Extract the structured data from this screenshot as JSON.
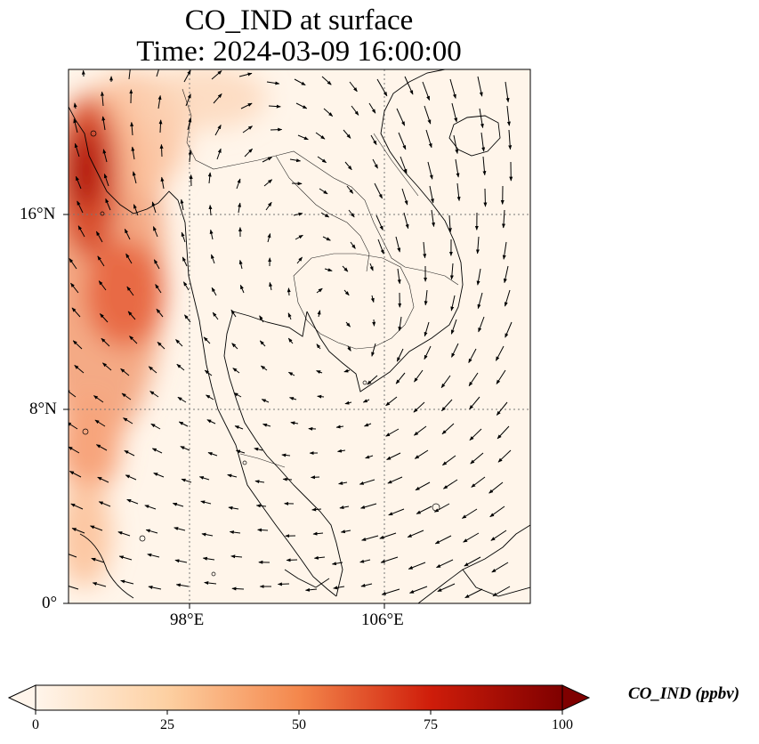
{
  "title": {
    "line1": "CO_IND at surface",
    "line2": "Time: 2024-03-09 16:00:00"
  },
  "map": {
    "lon_range": [
      93,
      112
    ],
    "lat_range": [
      0,
      22
    ],
    "lon_ticks": [
      {
        "value": 98,
        "label": "98°E"
      },
      {
        "value": 106,
        "label": "106°E"
      }
    ],
    "lat_ticks": [
      {
        "value": 16,
        "label": "16°N"
      },
      {
        "value": 8,
        "label": "8°N"
      },
      {
        "value": 0,
        "label": "0°"
      }
    ],
    "gridlines": true,
    "features": [
      "coastlines",
      "country-borders",
      "wind-vectors"
    ]
  },
  "colorbar": {
    "label": "CO_IND (ppbv)",
    "min": 0,
    "max": 100,
    "ticks": [
      "0",
      "25",
      "50",
      "75",
      "100"
    ],
    "colors": [
      "#fff5eb",
      "#fdd0a2",
      "#fd8d3c",
      "#d94801",
      "#7f2704"
    ],
    "colormap": "Oranges"
  }
}
